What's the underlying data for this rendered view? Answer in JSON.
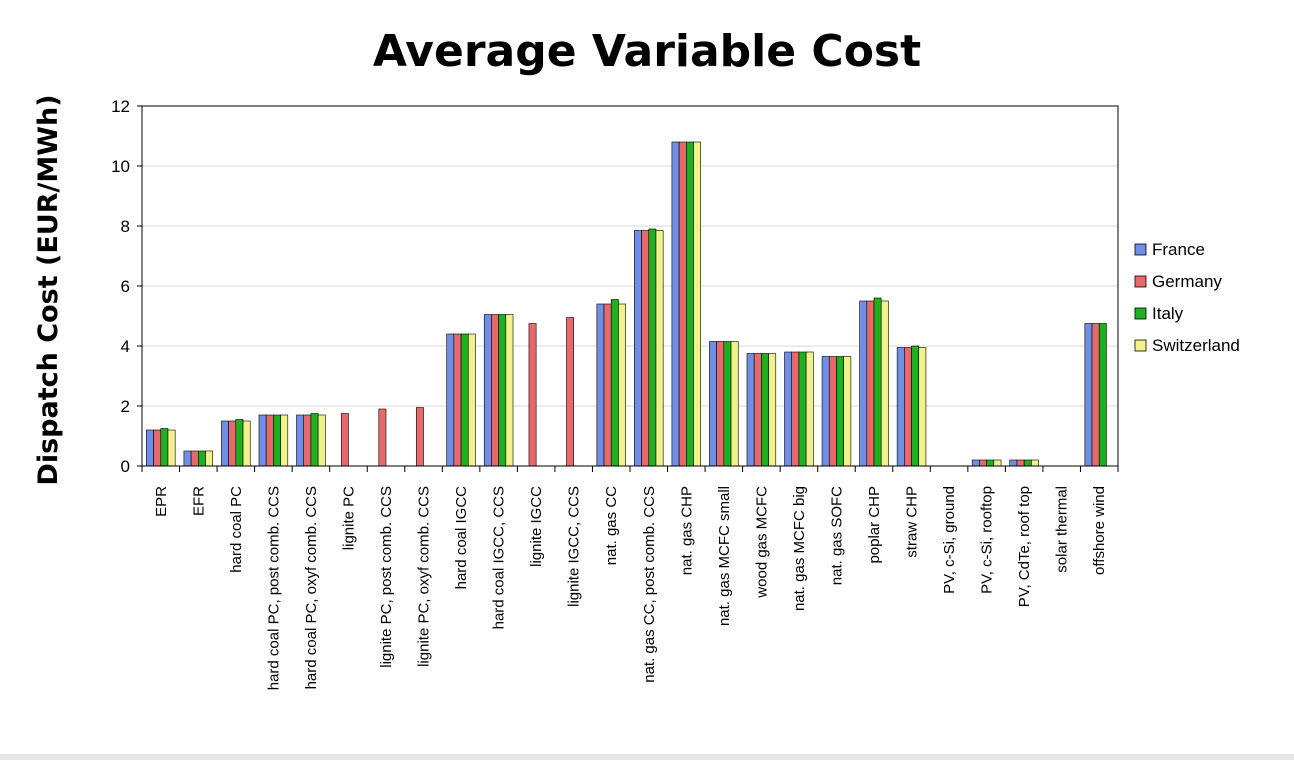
{
  "chart_data": {
    "type": "bar",
    "title": "Average Variable Cost",
    "ylabel": "Dispatch Cost (EUR/MWh)",
    "xlabel": "",
    "ylim": [
      0,
      12
    ],
    "yticks": [
      0,
      2,
      4,
      6,
      8,
      10,
      12
    ],
    "grid": true,
    "legend_position": "right",
    "categories": [
      "EPR",
      "EFR",
      "hard coal PC",
      "hard coal PC, post comb. CCS",
      "hard coal PC, oxyf comb. CCS",
      "lignite PC",
      "lignite PC, post comb. CCS",
      "lignite PC, oxyf comb. CCS",
      "hard coal IGCC",
      "hard coal IGCC, CCS",
      "lignite IGCC",
      "lignite IGCC, CCS",
      "nat. gas CC",
      "nat. gas CC, post comb. CCS",
      "nat. gas CHP",
      "nat. gas MCFC small",
      "wood gas MCFC",
      "nat. gas MCFC big",
      "nat. gas SOFC",
      "poplar CHP",
      "straw CHP",
      "PV, c-Si, ground",
      "PV, c-Si, rooftop",
      "PV, CdTe, roof top",
      "solar thermal",
      "offshore wind"
    ],
    "series": [
      {
        "name": "France",
        "color": "#6f8fe6",
        "values": [
          1.2,
          0.5,
          1.5,
          1.7,
          1.7,
          null,
          null,
          null,
          4.4,
          5.05,
          null,
          null,
          5.4,
          7.85,
          10.8,
          4.15,
          3.75,
          3.8,
          3.65,
          5.5,
          3.95,
          null,
          0.2,
          0.2,
          null,
          4.75
        ]
      },
      {
        "name": "Germany",
        "color": "#e8696b",
        "values": [
          1.2,
          0.5,
          1.5,
          1.7,
          1.7,
          1.75,
          1.9,
          1.95,
          4.4,
          5.05,
          4.75,
          4.95,
          5.4,
          7.85,
          10.8,
          4.15,
          3.75,
          3.8,
          3.65,
          5.5,
          3.95,
          null,
          0.2,
          0.2,
          null,
          4.75
        ]
      },
      {
        "name": "Italy",
        "color": "#1fb01f",
        "values": [
          1.25,
          0.5,
          1.55,
          1.7,
          1.75,
          null,
          null,
          null,
          4.4,
          5.05,
          null,
          null,
          5.55,
          7.9,
          10.8,
          4.15,
          3.75,
          3.8,
          3.65,
          5.6,
          4.0,
          null,
          0.2,
          0.2,
          null,
          4.75
        ]
      },
      {
        "name": "Switzerland",
        "color": "#f2f28c",
        "values": [
          1.2,
          0.5,
          1.5,
          1.7,
          1.7,
          null,
          null,
          null,
          4.4,
          5.05,
          null,
          null,
          5.4,
          7.85,
          10.8,
          4.15,
          3.75,
          3.8,
          3.65,
          5.5,
          3.95,
          null,
          0.2,
          0.2,
          null,
          null
        ]
      }
    ]
  }
}
